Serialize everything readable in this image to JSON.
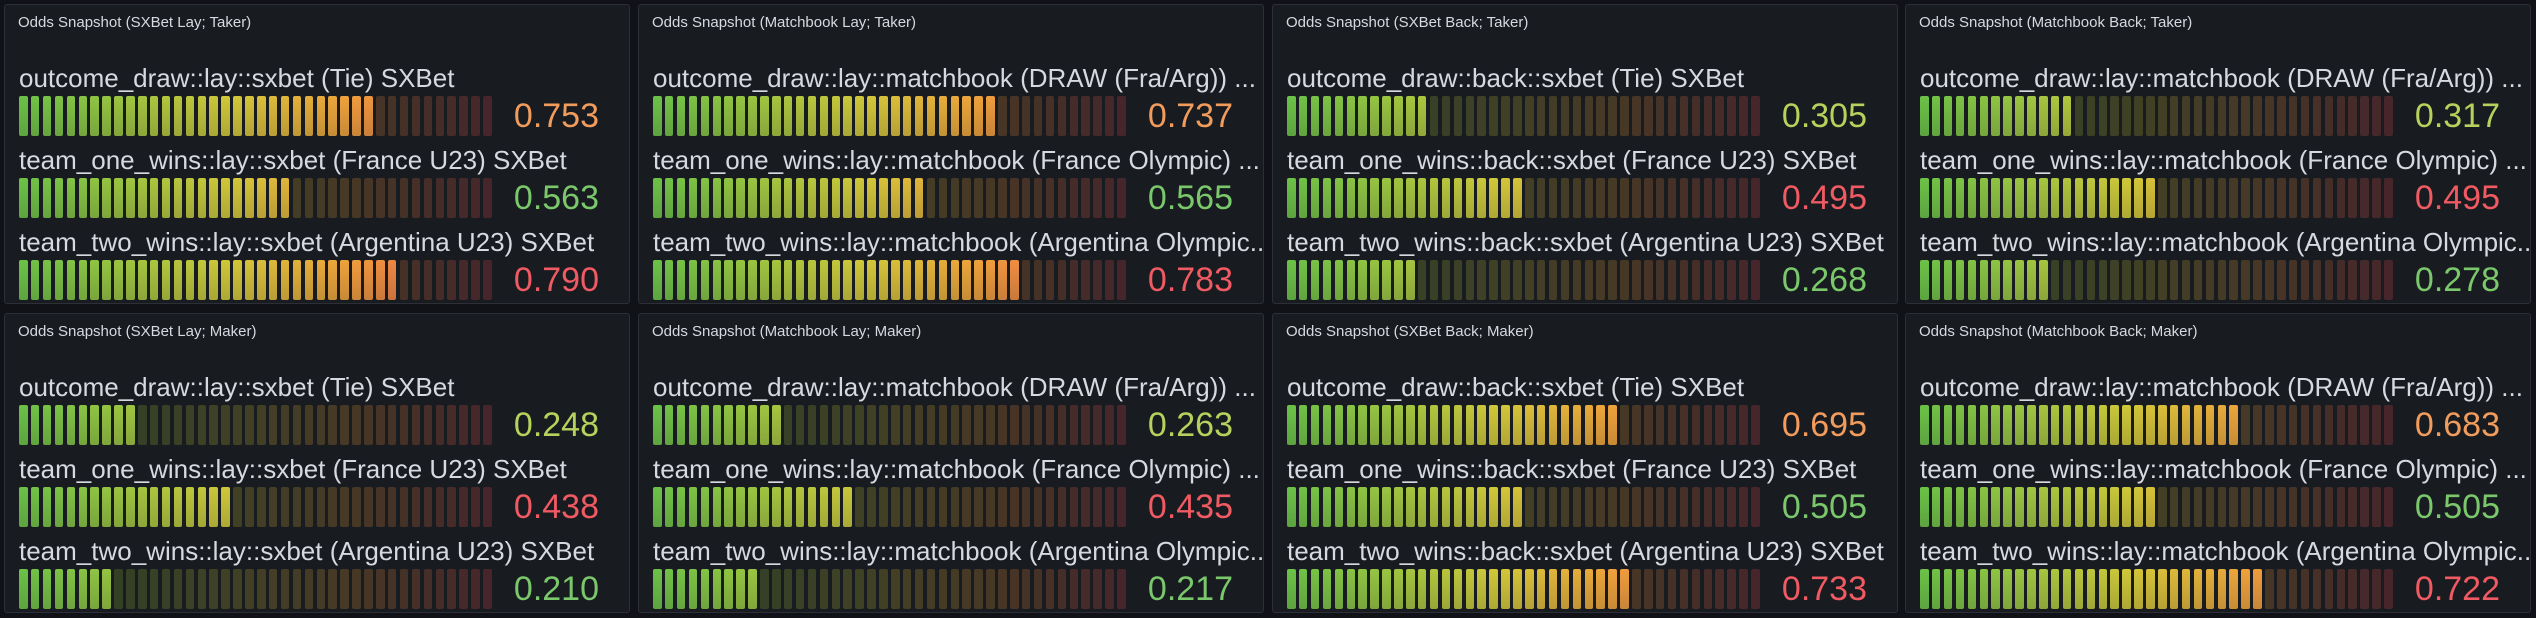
{
  "panels": [
    {
      "title": "Odds Snapshot (SXBet Lay; Taker)",
      "rows": [
        {
          "label": "outcome_draw::lay::sxbet (Tie) SXBet",
          "value": 0.753,
          "display": "0.753",
          "color": "#f19c5c"
        },
        {
          "label": "team_one_wins::lay::sxbet (France U23) SXBet",
          "value": 0.563,
          "display": "0.563",
          "color": "#7ac86b"
        },
        {
          "label": "team_two_wins::lay::sxbet (Argentina U23) SXBet",
          "value": 0.79,
          "display": "0.790",
          "color": "#f05a63"
        }
      ]
    },
    {
      "title": "Odds Snapshot (Matchbook Lay; Taker)",
      "rows": [
        {
          "label": "outcome_draw::lay::matchbook (DRAW (Fra/Arg)) ...",
          "value": 0.737,
          "display": "0.737",
          "color": "#f19c5c"
        },
        {
          "label": "team_one_wins::lay::matchbook (France Olympic) ...",
          "value": 0.565,
          "display": "0.565",
          "color": "#7ac86b"
        },
        {
          "label": "team_two_wins::lay::matchbook (Argentina Olympic...",
          "value": 0.783,
          "display": "0.783",
          "color": "#f05a63"
        }
      ]
    },
    {
      "title": "Odds Snapshot (SXBet Back; Taker)",
      "rows": [
        {
          "label": "outcome_draw::back::sxbet (Tie) SXBet",
          "value": 0.305,
          "display": "0.305",
          "color": "#b6d15c"
        },
        {
          "label": "team_one_wins::back::sxbet (France U23) SXBet",
          "value": 0.495,
          "display": "0.495",
          "color": "#f05a63"
        },
        {
          "label": "team_two_wins::back::sxbet (Argentina U23) SXBet",
          "value": 0.268,
          "display": "0.268",
          "color": "#7ac86b"
        }
      ]
    },
    {
      "title": "Odds Snapshot (Matchbook Back; Taker)",
      "rows": [
        {
          "label": "outcome_draw::lay::matchbook (DRAW (Fra/Arg)) ...",
          "value": 0.317,
          "display": "0.317",
          "color": "#b6d15c"
        },
        {
          "label": "team_one_wins::lay::matchbook (France Olympic) ...",
          "value": 0.495,
          "display": "0.495",
          "color": "#f05a63"
        },
        {
          "label": "team_two_wins::lay::matchbook (Argentina Olympic...",
          "value": 0.278,
          "display": "0.278",
          "color": "#7ac86b"
        }
      ]
    },
    {
      "title": "Odds Snapshot (SXBet Lay; Maker)",
      "rows": [
        {
          "label": "outcome_draw::lay::sxbet (Tie) SXBet",
          "value": 0.248,
          "display": "0.248",
          "color": "#b6d15c"
        },
        {
          "label": "team_one_wins::lay::sxbet (France U23) SXBet",
          "value": 0.438,
          "display": "0.438",
          "color": "#f05a63"
        },
        {
          "label": "team_two_wins::lay::sxbet (Argentina U23) SXBet",
          "value": 0.21,
          "display": "0.210",
          "color": "#7ac86b"
        }
      ]
    },
    {
      "title": "Odds Snapshot (Matchbook Lay; Maker)",
      "rows": [
        {
          "label": "outcome_draw::lay::matchbook (DRAW (Fra/Arg)) ...",
          "value": 0.263,
          "display": "0.263",
          "color": "#b6d15c"
        },
        {
          "label": "team_one_wins::lay::matchbook (France Olympic) ...",
          "value": 0.435,
          "display": "0.435",
          "color": "#f05a63"
        },
        {
          "label": "team_two_wins::lay::matchbook (Argentina Olympic...",
          "value": 0.217,
          "display": "0.217",
          "color": "#7ac86b"
        }
      ]
    },
    {
      "title": "Odds Snapshot (SXBet Back; Maker)",
      "rows": [
        {
          "label": "outcome_draw::back::sxbet (Tie) SXBet",
          "value": 0.695,
          "display": "0.695",
          "color": "#f19c5c"
        },
        {
          "label": "team_one_wins::back::sxbet (France U23) SXBet",
          "value": 0.505,
          "display": "0.505",
          "color": "#7ac86b"
        },
        {
          "label": "team_two_wins::back::sxbet (Argentina U23) SXBet",
          "value": 0.733,
          "display": "0.733",
          "color": "#f05a63"
        }
      ]
    },
    {
      "title": "Odds Snapshot (Matchbook Back; Maker)",
      "rows": [
        {
          "label": "outcome_draw::lay::matchbook (DRAW (Fra/Arg)) ...",
          "value": 0.683,
          "display": "0.683",
          "color": "#f19c5c"
        },
        {
          "label": "team_one_wins::lay::matchbook (France Olympic) ...",
          "value": 0.505,
          "display": "0.505",
          "color": "#7ac86b"
        },
        {
          "label": "team_two_wins::lay::matchbook (Argentina Olympic...",
          "value": 0.722,
          "display": "0.722",
          "color": "#f05a63"
        }
      ]
    }
  ]
}
